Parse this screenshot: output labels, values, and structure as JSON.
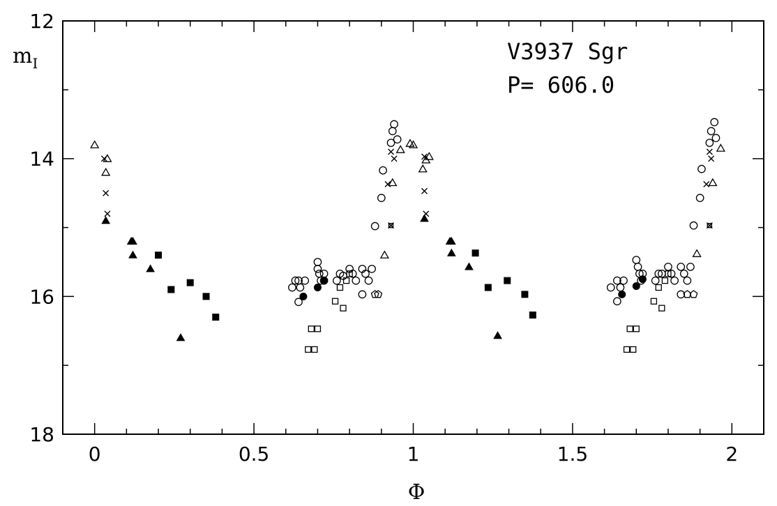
{
  "chart_data": {
    "type": "scatter",
    "xlabel": "Φ",
    "ylabel_main": "m",
    "ylabel_sub": "I",
    "xlim": [
      -0.1,
      2.1
    ],
    "ylim": [
      12,
      18
    ],
    "y_inverted": true,
    "x_ticks_major": [
      0,
      0.5,
      1,
      1.5,
      2
    ],
    "x_tick_labels": [
      "0",
      "0.5",
      "1",
      "1.5",
      "2"
    ],
    "y_ticks_major": [
      12,
      14,
      16,
      18
    ],
    "y_tick_labels": [
      "12",
      "14",
      "16",
      "18"
    ],
    "grid": false,
    "legend": "none",
    "annotations": [
      "V3937 Sgr",
      "P= 606.0"
    ],
    "series": [
      {
        "marker": "open-triangle",
        "points": [
          [
            0.0,
            13.8
          ],
          [
            0.04,
            14.0
          ],
          [
            0.035,
            14.2
          ],
          [
            0.91,
            15.4
          ],
          [
            0.935,
            14.35
          ],
          [
            0.96,
            13.87
          ],
          [
            0.99,
            13.78
          ],
          [
            1.03,
            14.15
          ],
          [
            1.05,
            13.97
          ],
          [
            1.0,
            13.8
          ],
          [
            1.04,
            14.02
          ],
          [
            1.89,
            15.38
          ],
          [
            1.94,
            14.35
          ],
          [
            1.965,
            13.85
          ]
        ]
      },
      {
        "marker": "cross",
        "points": [
          [
            0.03,
            14.0
          ],
          [
            0.035,
            14.5
          ],
          [
            0.04,
            14.8
          ],
          [
            0.92,
            14.37
          ],
          [
            0.94,
            14.0
          ],
          [
            0.93,
            13.9
          ],
          [
            1.035,
            13.97
          ],
          [
            1.035,
            14.47
          ],
          [
            1.04,
            14.8
          ],
          [
            1.92,
            14.37
          ],
          [
            1.93,
            13.9
          ],
          [
            1.935,
            14.0
          ]
        ]
      },
      {
        "marker": "filled-triangle",
        "points": [
          [
            0.035,
            14.9
          ],
          [
            0.115,
            15.2
          ],
          [
            0.12,
            15.2
          ],
          [
            0.12,
            15.4
          ],
          [
            0.175,
            15.6
          ],
          [
            0.27,
            16.6
          ],
          [
            1.035,
            14.87
          ],
          [
            1.115,
            15.2
          ],
          [
            1.12,
            15.2
          ],
          [
            1.12,
            15.37
          ],
          [
            1.175,
            15.57
          ],
          [
            1.265,
            16.57
          ]
        ]
      },
      {
        "marker": "filled-square",
        "points": [
          [
            0.2,
            15.4
          ],
          [
            0.24,
            15.9
          ],
          [
            0.3,
            15.8
          ],
          [
            0.35,
            16.0
          ],
          [
            0.38,
            16.3
          ],
          [
            1.195,
            15.37
          ],
          [
            1.235,
            15.87
          ],
          [
            1.295,
            15.77
          ],
          [
            1.35,
            15.97
          ],
          [
            1.375,
            16.27
          ]
        ]
      },
      {
        "marker": "open-circle",
        "points": [
          [
            0.62,
            15.87
          ],
          [
            0.63,
            15.77
          ],
          [
            0.64,
            15.77
          ],
          [
            0.64,
            16.08
          ],
          [
            0.645,
            15.87
          ],
          [
            0.66,
            15.77
          ],
          [
            0.7,
            15.5
          ],
          [
            0.7,
            15.6
          ],
          [
            0.705,
            15.67
          ],
          [
            0.71,
            15.77
          ],
          [
            0.72,
            15.67
          ],
          [
            0.72,
            15.77
          ],
          [
            0.76,
            15.77
          ],
          [
            0.77,
            15.67
          ],
          [
            0.78,
            15.7
          ],
          [
            0.8,
            15.6
          ],
          [
            0.81,
            15.67
          ],
          [
            0.82,
            15.77
          ],
          [
            0.84,
            15.6
          ],
          [
            0.85,
            15.67
          ],
          [
            0.86,
            15.77
          ],
          [
            0.87,
            15.6
          ],
          [
            0.84,
            15.97
          ],
          [
            0.88,
            14.98
          ],
          [
            0.9,
            14.57
          ],
          [
            0.905,
            14.17
          ],
          [
            0.93,
            13.77
          ],
          [
            0.935,
            13.6
          ],
          [
            0.94,
            13.5
          ],
          [
            0.95,
            13.72
          ],
          [
            1.62,
            15.87
          ],
          [
            1.64,
            15.77
          ],
          [
            1.64,
            16.07
          ],
          [
            1.65,
            15.87
          ],
          [
            1.66,
            15.77
          ],
          [
            1.7,
            15.47
          ],
          [
            1.705,
            15.57
          ],
          [
            1.71,
            15.67
          ],
          [
            1.715,
            15.77
          ],
          [
            1.72,
            15.67
          ],
          [
            1.76,
            15.77
          ],
          [
            1.77,
            15.67
          ],
          [
            1.78,
            15.67
          ],
          [
            1.8,
            15.57
          ],
          [
            1.81,
            15.67
          ],
          [
            1.82,
            15.77
          ],
          [
            1.84,
            15.57
          ],
          [
            1.85,
            15.67
          ],
          [
            1.86,
            15.77
          ],
          [
            1.87,
            15.57
          ],
          [
            1.84,
            15.97
          ],
          [
            1.88,
            14.97
          ],
          [
            1.9,
            14.57
          ],
          [
            1.905,
            14.15
          ],
          [
            1.93,
            13.77
          ],
          [
            1.935,
            13.6
          ],
          [
            1.945,
            13.47
          ],
          [
            1.95,
            13.7
          ]
        ]
      },
      {
        "marker": "filled-circle",
        "points": [
          [
            0.655,
            16.0
          ],
          [
            0.7,
            15.87
          ],
          [
            0.72,
            15.77
          ],
          [
            1.655,
            15.97
          ],
          [
            1.7,
            15.85
          ],
          [
            1.72,
            15.75
          ]
        ]
      },
      {
        "marker": "open-square",
        "points": [
          [
            0.67,
            16.77
          ],
          [
            0.69,
            16.77
          ],
          [
            0.68,
            16.47
          ],
          [
            0.7,
            16.47
          ],
          [
            0.755,
            16.07
          ],
          [
            0.78,
            16.17
          ],
          [
            0.77,
            15.87
          ],
          [
            0.79,
            15.77
          ],
          [
            0.8,
            15.67
          ],
          [
            1.67,
            16.77
          ],
          [
            1.69,
            16.77
          ],
          [
            1.68,
            16.47
          ],
          [
            1.7,
            16.47
          ],
          [
            1.755,
            16.07
          ],
          [
            1.78,
            16.17
          ],
          [
            1.77,
            15.87
          ],
          [
            1.79,
            15.77
          ],
          [
            1.8,
            15.67
          ]
        ]
      },
      {
        "marker": "open-pentagon",
        "points": [
          [
            0.88,
            15.97
          ],
          [
            0.89,
            15.97
          ],
          [
            1.86,
            15.97
          ],
          [
            1.88,
            15.97
          ]
        ]
      },
      {
        "marker": "cross-square",
        "points": [
          [
            0.93,
            14.97
          ],
          [
            1.93,
            14.97
          ]
        ]
      }
    ]
  }
}
